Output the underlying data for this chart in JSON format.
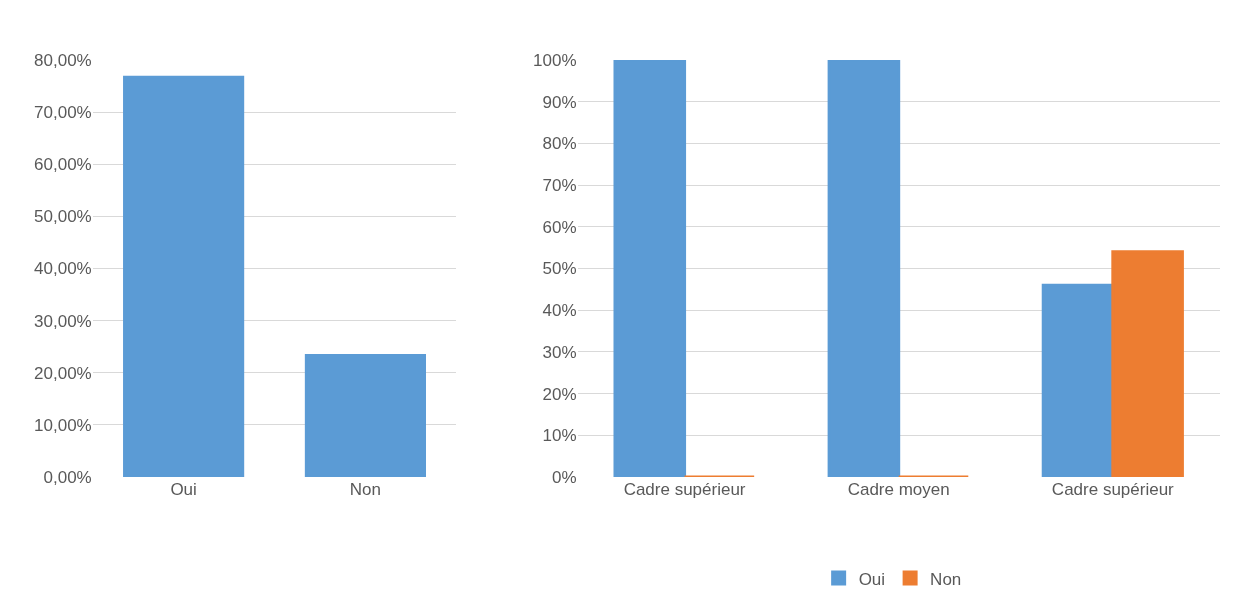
{
  "chart_data": [
    {
      "type": "bar",
      "categories": [
        "Oui",
        "Non"
      ],
      "series": [
        {
          "color": "#5b9bd5",
          "values": [
            76.7,
            23.3
          ]
        }
      ],
      "ylim": [
        0,
        80
      ],
      "yticks": [
        {
          "value": 0,
          "label": "0,00%"
        },
        {
          "value": 10,
          "label": "10,00%"
        },
        {
          "value": 20,
          "label": "20,00%"
        },
        {
          "value": 30,
          "label": "30,00%"
        },
        {
          "value": 40,
          "label": "40,00%"
        },
        {
          "value": 50,
          "label": "50,00%"
        },
        {
          "value": 60,
          "label": "60,00%"
        },
        {
          "value": 70,
          "label": "70,00%"
        },
        {
          "value": 80,
          "label": "80,00%"
        }
      ],
      "grid": "y",
      "legend": false
    },
    {
      "type": "bar",
      "categories": [
        "Cadre supérieur",
        "Cadre moyen",
        "Cadre supérieur"
      ],
      "series": [
        {
          "name": "Oui",
          "color": "#5b9bd5",
          "values": [
            100,
            100,
            46
          ]
        },
        {
          "name": "Non",
          "color": "#ed7d31",
          "values": [
            0,
            0,
            54
          ]
        }
      ],
      "ylim": [
        0,
        100
      ],
      "yticks": [
        {
          "value": 0,
          "label": "0%"
        },
        {
          "value": 10,
          "label": "10%"
        },
        {
          "value": 20,
          "label": "20%"
        },
        {
          "value": 30,
          "label": "30%"
        },
        {
          "value": 40,
          "label": "40%"
        },
        {
          "value": 50,
          "label": "50%"
        },
        {
          "value": 60,
          "label": "60%"
        },
        {
          "value": 70,
          "label": "70%"
        },
        {
          "value": 80,
          "label": "80%"
        },
        {
          "value": 90,
          "label": "90%"
        },
        {
          "value": 100,
          "label": "100%"
        }
      ],
      "grid": "y",
      "legend": "bottom"
    }
  ]
}
